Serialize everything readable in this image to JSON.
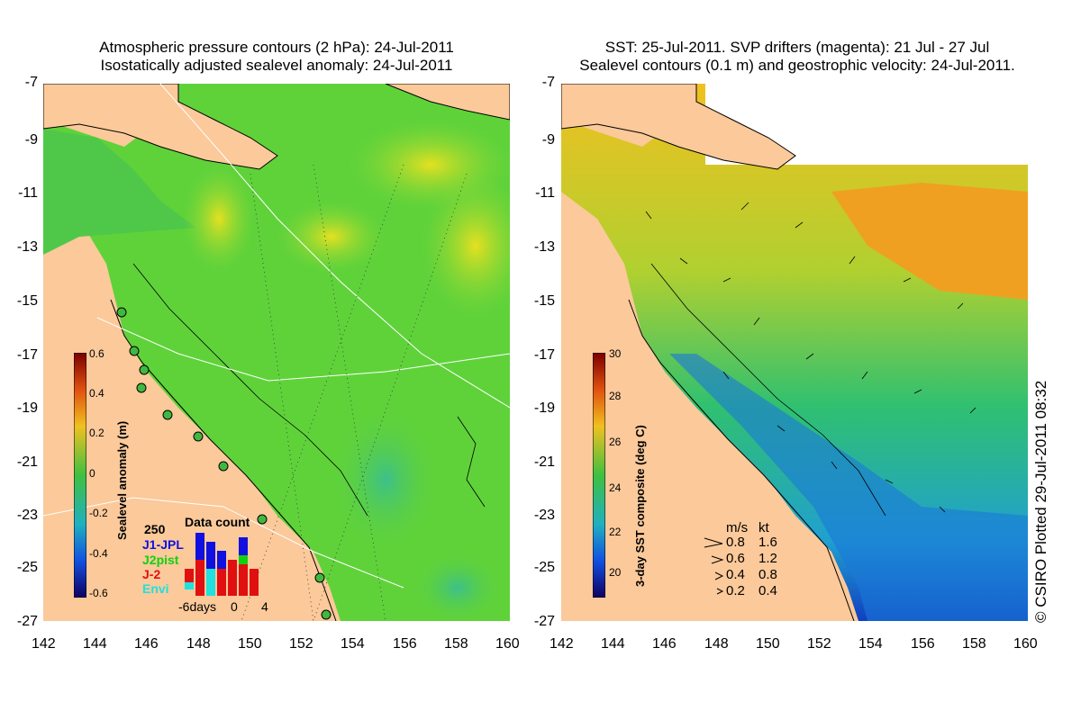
{
  "left_panel": {
    "title_line1": "Atmospheric pressure contours (2 hPa): 24-Jul-2011",
    "title_line2": "Isostatically adjusted sealevel anomaly: 24-Jul-2011",
    "colorbar_label": "Sealevel anomaly (m)",
    "colorbar_ticks": [
      "0.6",
      "0.4",
      "0.2",
      "0",
      "-0.2",
      "-0.4",
      "-0.6"
    ],
    "inset": {
      "title": "Data count",
      "ymax_label": "250",
      "x_ticks": [
        "-6days",
        "0",
        "4"
      ],
      "satellites": [
        {
          "name": "J1-JPL",
          "color": "#1010e0"
        },
        {
          "name": "J2pist",
          "color": "#10d010"
        },
        {
          "name": "J-2",
          "color": "#e01010"
        },
        {
          "name": "Envi",
          "color": "#20e0e0"
        }
      ]
    }
  },
  "right_panel": {
    "title_line1": "SST: 25-Jul-2011. SVP drifters (magenta): 21 Jul - 27 Jul",
    "title_line2": "Sealevel contours (0.1 m) and geostrophic velocity: 24-Jul-2011.",
    "colorbar_label": "3-day SST composite (deg C)",
    "colorbar_ticks": [
      "30",
      "28",
      "26",
      "24",
      "22",
      "20"
    ],
    "velocity_legend": {
      "header_ms": "m/s",
      "header_kt": "kt",
      "rows": [
        {
          "ms": "0.8",
          "kt": "1.6"
        },
        {
          "ms": "0.6",
          "kt": "1.2"
        },
        {
          "ms": "0.4",
          "kt": "0.8"
        },
        {
          "ms": "0.2",
          "kt": "0.4"
        }
      ]
    }
  },
  "axes": {
    "lat_ticks": [
      "-7",
      "-9",
      "-11",
      "-13",
      "-15",
      "-17",
      "-19",
      "-21",
      "-23",
      "-25",
      "-27"
    ],
    "lon_ticks": [
      "142",
      "144",
      "146",
      "148",
      "150",
      "152",
      "154",
      "156",
      "158",
      "160"
    ]
  },
  "copyright": "© CSIRO Plotted 29-Jul-2011 08:32",
  "colors": {
    "land": "#fbc99a",
    "sla_ocean": "#5fd23a",
    "sst_ocean": "#33cc55"
  }
}
